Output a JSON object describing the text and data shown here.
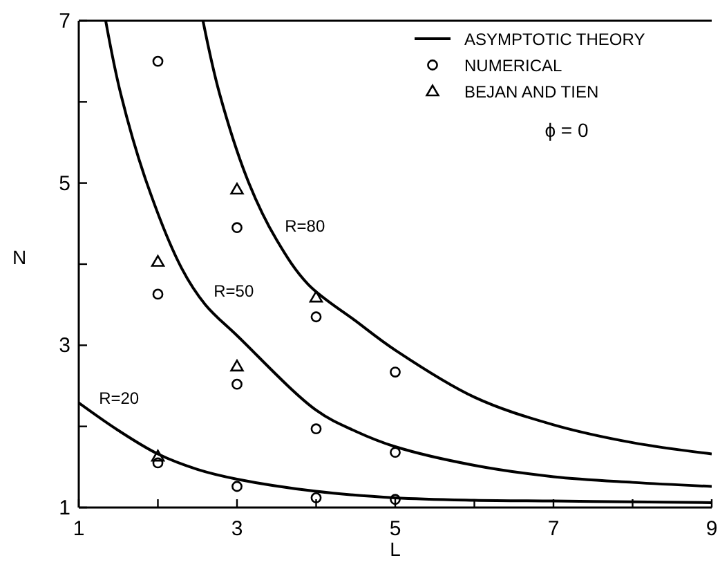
{
  "chart_data": {
    "type": "line",
    "xlabel": "L",
    "ylabel": "N",
    "xlim": [
      1,
      9
    ],
    "ylim": [
      1,
      7
    ],
    "xticks": [
      1,
      {
        "value": 2,
        "label": null
      },
      3,
      {
        "value": 4,
        "label": null
      },
      5,
      {
        "value": 6,
        "label": null
      },
      7,
      {
        "value": 8,
        "label": null
      },
      9
    ],
    "yticks": [
      1,
      {
        "value": 2,
        "label": null
      },
      3,
      {
        "value": 4,
        "label": null
      },
      5,
      {
        "value": 6,
        "label": null
      },
      7
    ],
    "grid": false,
    "legend": "top right",
    "annotations": [
      {
        "text": "R=20",
        "x": 1.15,
        "y": 2.18
      },
      {
        "text": "R=50",
        "x": 2.6,
        "y": 3.5
      },
      {
        "text": "R=80",
        "x": 3.5,
        "y": 4.3
      },
      "ϕ = 0"
    ],
    "series": [
      {
        "name": "ASYMPTOTIC THEORY",
        "color": "#000000",
        "marker": "none",
        "x": [
          1,
          1.5,
          2,
          2.5,
          3,
          4,
          5,
          6,
          7,
          8,
          9
        ],
        "values": [
          2.29,
          1.95,
          1.66,
          1.47,
          1.35,
          1.2,
          1.12,
          1.09,
          1.08,
          1.07,
          1.06
        ]
      },
      {
        "color": "#000000",
        "marker": "none",
        "x": [
          1.34,
          1.53,
          1.86,
          2.3,
          2.6,
          3,
          4,
          4.5,
          5,
          6,
          7,
          8,
          9
        ],
        "values": [
          7,
          6.1,
          5,
          3.95,
          3.5,
          3.12,
          2.2,
          1.94,
          1.75,
          1.52,
          1.38,
          1.31,
          1.26
        ]
      },
      {
        "color": "#000000",
        "marker": "none",
        "x": [
          2.57,
          2.78,
          3.15,
          3.5,
          3.9,
          4.5,
          5,
          6,
          7,
          8,
          9
        ],
        "values": [
          7,
          6.1,
          5,
          4.3,
          3.75,
          3.3,
          2.94,
          2.36,
          2.02,
          1.8,
          1.66
        ]
      },
      {
        "name": "NUMERICAL",
        "type": "scatter",
        "color": "#000000",
        "marker": "circle",
        "x": [
          2,
          3,
          2,
          4,
          5,
          3,
          4,
          5,
          2,
          3,
          4,
          5
        ],
        "values": [
          6.5,
          4.45,
          3.63,
          3.35,
          2.67,
          2.52,
          1.97,
          1.68,
          1.55,
          1.26,
          1.12,
          1.1
        ]
      },
      {
        "name": "BEJAN AND TIEN",
        "type": "scatter",
        "color": "#000000",
        "marker": "triangle",
        "x": [
          3,
          2,
          4,
          3,
          2
        ],
        "values": [
          4.92,
          4.03,
          3.59,
          2.74,
          1.63
        ]
      }
    ]
  }
}
